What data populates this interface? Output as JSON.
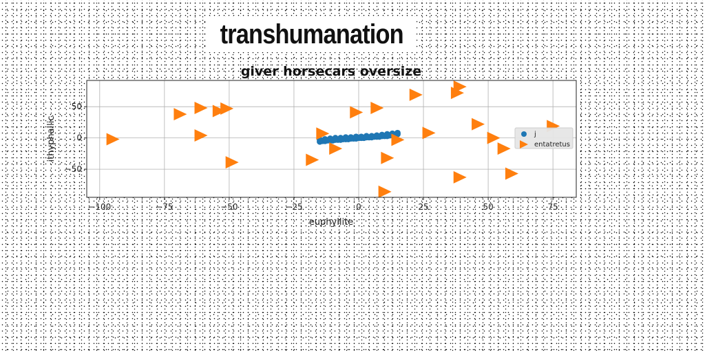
{
  "banner": {
    "text": "transhumanation"
  },
  "colors": {
    "series_1": "#1f77b4",
    "series_2": "#ff7f0e",
    "grid": "#b0b0b0"
  },
  "chart_data": {
    "type": "scatter",
    "title": "giver horsecars oversize",
    "xlabel": "euphyllite",
    "ylabel": "ithyphallic",
    "xlim": [
      -105,
      84
    ],
    "ylim": [
      -95,
      92
    ],
    "xticks": [
      -100,
      -75,
      -50,
      -25,
      0,
      25,
      50,
      75
    ],
    "yticks": [
      -50,
      0,
      50
    ],
    "grid": true,
    "legend_position": "right",
    "series": [
      {
        "name": "j",
        "marker": "circle",
        "color": "#1f77b4",
        "x": [
          -15,
          -14,
          -13,
          -12,
          -11,
          -10,
          -9,
          -8,
          -7,
          -6,
          -5,
          -4,
          -3,
          -2,
          -1,
          0,
          1,
          2,
          3,
          4,
          5,
          6,
          7,
          8,
          9,
          10,
          11,
          12,
          13,
          14,
          15,
          -15,
          -13,
          -11,
          -9,
          -7,
          -5,
          -3,
          -1,
          1,
          3,
          5,
          7,
          9,
          11,
          13,
          15
        ],
        "y": [
          -6,
          -5,
          -5,
          -4,
          -4,
          -4,
          -3,
          -3,
          -3,
          -2,
          -2,
          -2,
          -1,
          -1,
          -1,
          0,
          0,
          0,
          1,
          1,
          1,
          2,
          2,
          2,
          3,
          3,
          3,
          4,
          4,
          5,
          6,
          -3,
          -2,
          -1,
          0,
          0,
          1,
          1,
          2,
          2,
          3,
          3,
          4,
          5,
          6,
          7,
          8
        ]
      },
      {
        "name": "entatretus",
        "marker": "triangle-right",
        "color": "#ff7f0e",
        "x": [
          -95,
          -69,
          -61,
          -61,
          -54,
          -51,
          -49,
          -18,
          -14,
          -9,
          -1,
          7,
          11,
          10,
          15,
          22,
          27,
          38,
          39,
          39,
          46,
          52,
          56,
          59,
          75
        ],
        "y": [
          -2,
          38,
          48,
          4,
          43,
          47,
          -39,
          -35,
          7,
          -17,
          41,
          48,
          -32,
          -86,
          -3,
          69,
          8,
          72,
          82,
          -63,
          22,
          0,
          -17,
          -57,
          19
        ]
      }
    ]
  }
}
